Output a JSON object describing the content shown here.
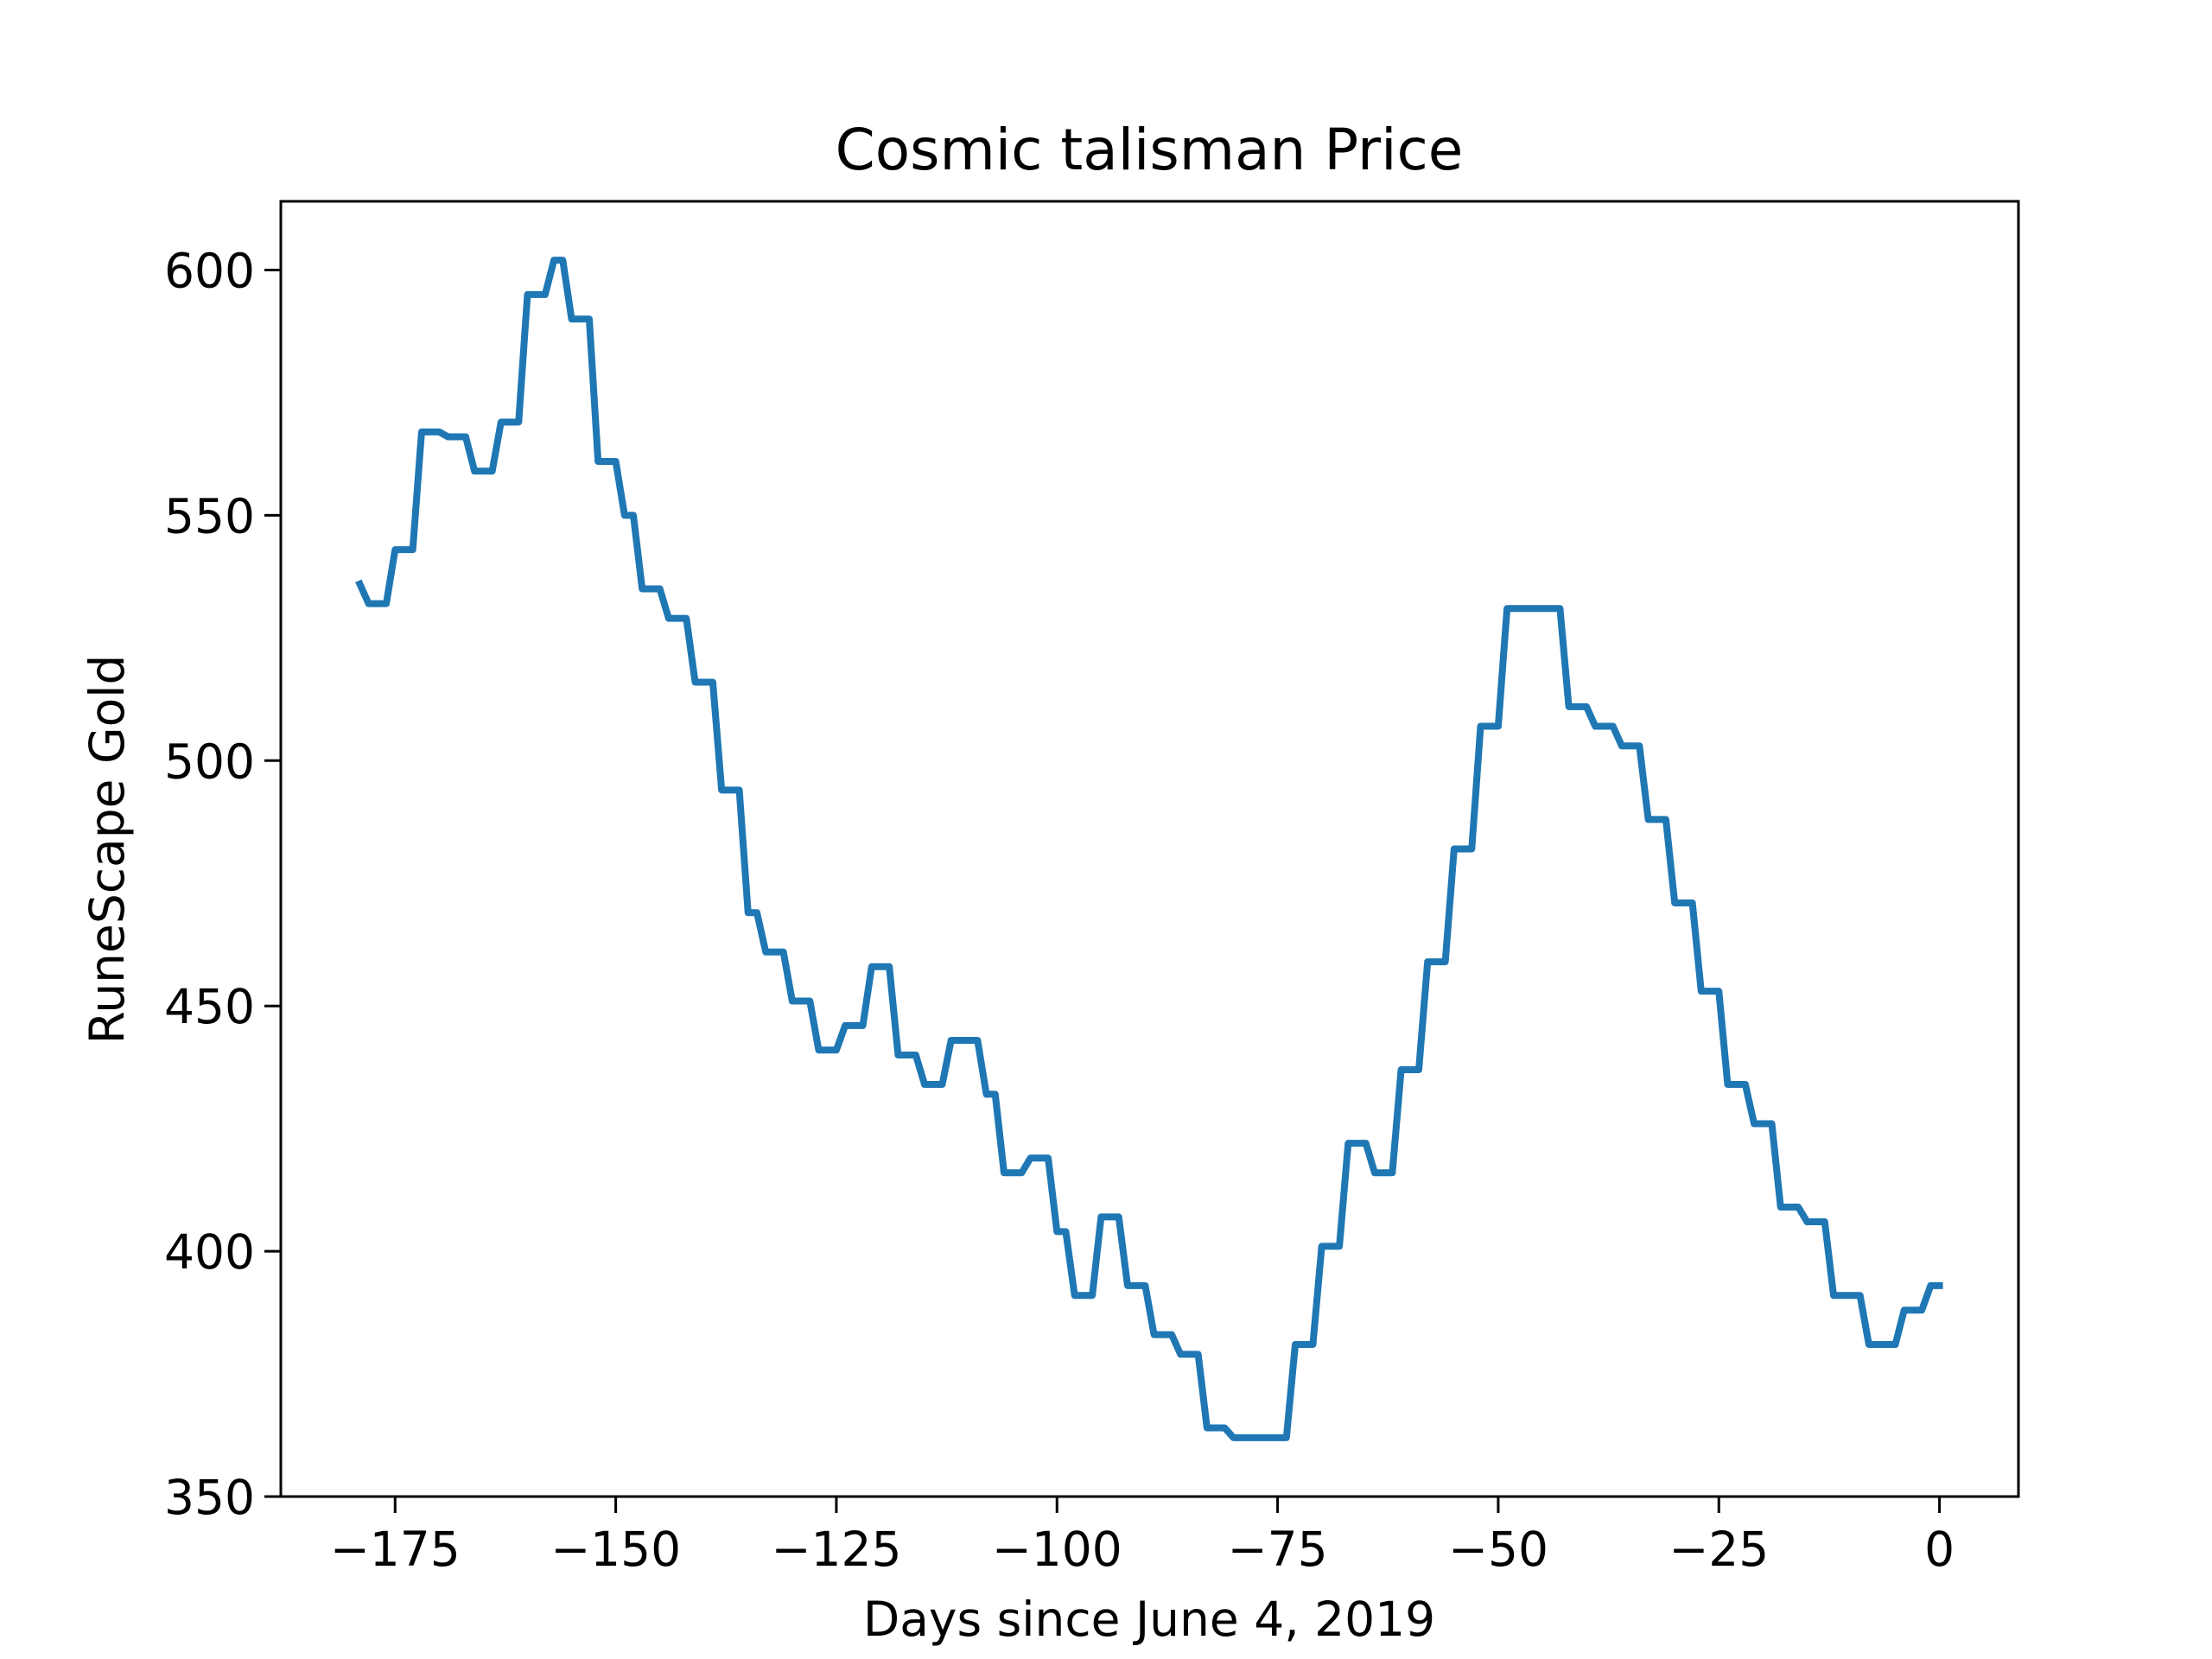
{
  "chart_data": {
    "type": "line",
    "title": "Cosmic talisman Price",
    "xlabel": "Days since June 4, 2019",
    "ylabel": "RuneScape Gold",
    "color": "#1f77b4",
    "x": [
      -179,
      -178,
      -177,
      -176,
      -175,
      -174,
      -173,
      -172,
      -171,
      -170,
      -169,
      -168,
      -167,
      -166,
      -165,
      -164,
      -163,
      -162,
      -161,
      -160,
      -159,
      -158,
      -157,
      -156,
      -155,
      -154,
      -153,
      -152,
      -151,
      -150,
      -149,
      -148,
      -147,
      -146,
      -145,
      -144,
      -143,
      -142,
      -141,
      -140,
      -139,
      -138,
      -137,
      -136,
      -135,
      -134,
      -133,
      -132,
      -131,
      -130,
      -129,
      -128,
      -127,
      -126,
      -125,
      -124,
      -123,
      -122,
      -121,
      -120,
      -119,
      -118,
      -117,
      -116,
      -115,
      -114,
      -113,
      -112,
      -111,
      -110,
      -109,
      -108,
      -107,
      -106,
      -105,
      -104,
      -103,
      -102,
      -101,
      -100,
      -99,
      -98,
      -97,
      -96,
      -95,
      -94,
      -93,
      -92,
      -91,
      -90,
      -89,
      -88,
      -87,
      -86,
      -85,
      -84,
      -83,
      -82,
      -81,
      -80,
      -79,
      -78,
      -77,
      -76,
      -75,
      -74,
      -73,
      -72,
      -71,
      -70,
      -69,
      -68,
      -67,
      -66,
      -65,
      -64,
      -63,
      -62,
      -61,
      -60,
      -59,
      -58,
      -57,
      -56,
      -55,
      -54,
      -53,
      -52,
      -51,
      -50,
      -49,
      -48,
      -47,
      -46,
      -45,
      -44,
      -43,
      -42,
      -41,
      -40,
      -39,
      -38,
      -37,
      -36,
      -35,
      -34,
      -33,
      -32,
      -31,
      -30,
      -29,
      -28,
      -27,
      -26,
      -25,
      -24,
      -23,
      -22,
      -21,
      -20,
      -19,
      -18,
      -17,
      -16,
      -15,
      -14,
      -13,
      -12,
      -11,
      -10,
      -9,
      -8,
      -7,
      -6,
      -5,
      -4,
      -3,
      -2,
      -1,
      0
    ],
    "values": [
      536,
      532,
      532,
      532,
      543,
      543,
      543,
      567,
      567,
      567,
      566,
      566,
      566,
      559,
      559,
      559,
      569,
      569,
      569,
      595,
      595,
      595,
      602,
      602,
      590,
      590,
      590,
      561,
      561,
      561,
      550,
      550,
      535,
      535,
      535,
      529,
      529,
      529,
      516,
      516,
      516,
      494,
      494,
      494,
      469,
      469,
      461,
      461,
      461,
      451,
      451,
      451,
      441,
      441,
      441,
      446,
      446,
      446,
      458,
      458,
      458,
      440,
      440,
      440,
      434,
      434,
      434,
      443,
      443,
      443,
      443,
      432,
      432,
      416,
      416,
      416,
      419,
      419,
      419,
      404,
      404,
      391,
      391,
      391,
      407,
      407,
      407,
      393,
      393,
      393,
      383,
      383,
      383,
      379,
      379,
      379,
      364,
      364,
      364,
      362,
      362,
      362,
      362,
      362,
      362,
      362,
      381,
      381,
      381,
      401,
      401,
      401,
      422,
      422,
      422,
      416,
      416,
      416,
      437,
      437,
      437,
      459,
      459,
      459,
      482,
      482,
      482,
      507,
      507,
      507,
      531,
      531,
      531,
      531,
      531,
      531,
      531,
      511,
      511,
      511,
      507,
      507,
      507,
      503,
      503,
      503,
      488,
      488,
      488,
      471,
      471,
      471,
      453,
      453,
      453,
      434,
      434,
      434,
      426,
      426,
      426,
      409,
      409,
      409,
      406,
      406,
      406,
      391,
      391,
      391,
      391,
      381,
      381,
      381,
      381,
      388,
      388,
      388,
      393,
      393
    ],
    "xlim": [
      -187.95,
      8.95
    ],
    "xticks": [
      {
        "value": -175,
        "label": "−175"
      },
      {
        "value": -150,
        "label": "−150"
      },
      {
        "value": -125,
        "label": "−125"
      },
      {
        "value": -100,
        "label": "−100"
      },
      {
        "value": -75,
        "label": "−75"
      },
      {
        "value": -50,
        "label": "−50"
      },
      {
        "value": -25,
        "label": "−25"
      },
      0
    ],
    "ylim": [
      350,
      614
    ],
    "yticks": [
      350,
      400,
      450,
      500,
      550,
      600
    ]
  }
}
